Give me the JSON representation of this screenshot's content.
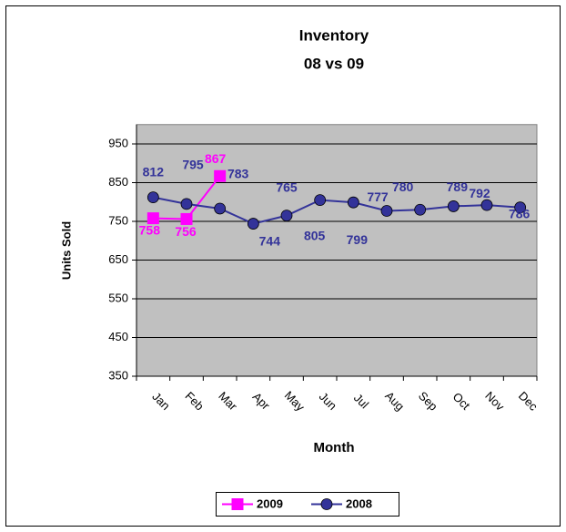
{
  "chart_data": {
    "type": "line",
    "title": "Inventory",
    "subtitle": "08 vs 09",
    "x_label": "Month",
    "y_label": "Units Sold",
    "categories": [
      "Jan",
      "Feb",
      "Mar",
      "Apr",
      "May",
      "Jun",
      "Jul",
      "Aug",
      "Sep",
      "Oct",
      "Nov",
      "Dec"
    ],
    "series": [
      {
        "name": "2009",
        "color": "#ff00ff",
        "marker": "square",
        "values": [
          758,
          756,
          867,
          null,
          null,
          null,
          null,
          null,
          null,
          null,
          null,
          null
        ]
      },
      {
        "name": "2008",
        "color": "#333399",
        "marker": "circle",
        "values": [
          812,
          795,
          783,
          744,
          765,
          805,
          799,
          777,
          780,
          789,
          792,
          786
        ]
      }
    ],
    "ylim": [
      350,
      1000
    ],
    "yticks": [
      350,
      450,
      550,
      650,
      750,
      850,
      950
    ],
    "grid": true,
    "plot_background": "#c0c0c0",
    "legend": "bottom"
  }
}
